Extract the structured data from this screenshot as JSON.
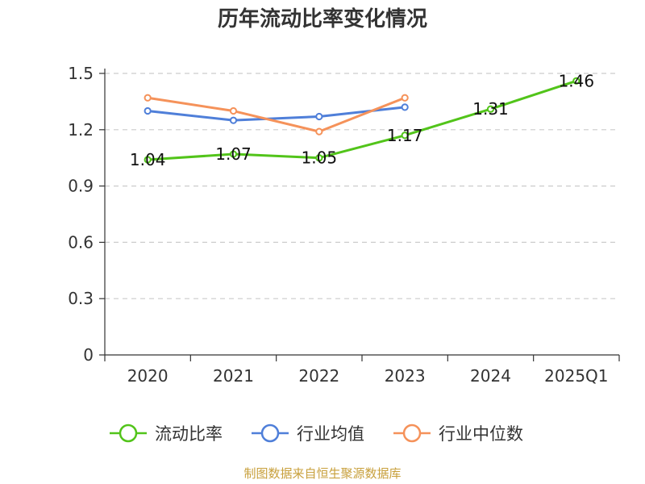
{
  "chart_data": {
    "type": "line",
    "title": "历年流动比率变化情况",
    "categories": [
      "2020",
      "2021",
      "2022",
      "2023",
      "2024",
      "2025Q1"
    ],
    "ylim": [
      0,
      1.5
    ],
    "yticks": [
      0,
      0.3,
      0.6,
      0.9,
      1.2,
      1.5
    ],
    "ytick_labels": [
      "0",
      "0.3",
      "0.6",
      "0.9",
      "1.2",
      "1.5"
    ],
    "grid": true,
    "legend_position": "bottom",
    "series": [
      {
        "name": "流动比率",
        "color": "#52c41a",
        "values": [
          1.04,
          1.07,
          1.05,
          1.17,
          1.31,
          1.46
        ],
        "labels": [
          "1.04",
          "1.07",
          "1.05",
          "1.17",
          "1.31",
          "1.46"
        ]
      },
      {
        "name": "行业均值",
        "color": "#4f7fd9",
        "values": [
          1.3,
          1.25,
          1.27,
          1.32,
          null,
          null
        ]
      },
      {
        "name": "行业中位数",
        "color": "#f5925a",
        "values": [
          1.37,
          1.3,
          1.19,
          1.37,
          null,
          null
        ]
      }
    ],
    "source": "制图数据来自恒生聚源数据库",
    "source_color": "#c8a03c"
  }
}
